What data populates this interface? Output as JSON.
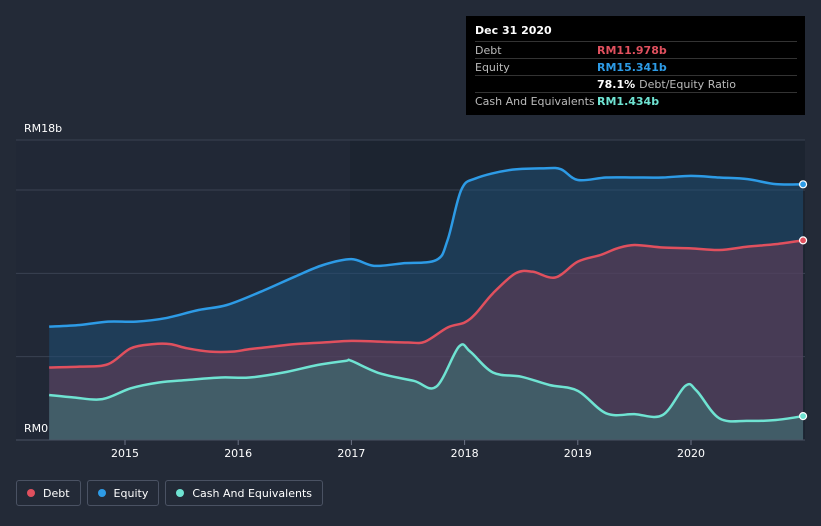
{
  "chart_data": {
    "type": "area",
    "x_ticks": [
      "2015",
      "2016",
      "2017",
      "2018",
      "2019",
      "2020"
    ],
    "y_ticks": [
      "RM0",
      "RM18b"
    ],
    "ylim": [
      0,
      18
    ],
    "y_unit": "RM billion",
    "grid": true,
    "legend_position": "bottom-left",
    "series": [
      {
        "name": "Debt",
        "color": "#e0505e",
        "points": [
          [
            2014.33,
            4.35
          ],
          [
            2014.6,
            4.4
          ],
          [
            2014.85,
            4.55
          ],
          [
            2015.05,
            5.5
          ],
          [
            2015.25,
            5.75
          ],
          [
            2015.4,
            5.75
          ],
          [
            2015.55,
            5.5
          ],
          [
            2015.75,
            5.3
          ],
          [
            2015.95,
            5.3
          ],
          [
            2016.1,
            5.45
          ],
          [
            2016.3,
            5.6
          ],
          [
            2016.5,
            5.75
          ],
          [
            2016.75,
            5.85
          ],
          [
            2017.0,
            5.95
          ],
          [
            2017.25,
            5.9
          ],
          [
            2017.5,
            5.85
          ],
          [
            2017.65,
            5.9
          ],
          [
            2017.85,
            6.75
          ],
          [
            2018.0,
            7.05
          ],
          [
            2018.1,
            7.6
          ],
          [
            2018.25,
            8.8
          ],
          [
            2018.45,
            10.0
          ],
          [
            2018.6,
            10.1
          ],
          [
            2018.8,
            9.75
          ],
          [
            2019.0,
            10.7
          ],
          [
            2019.2,
            11.1
          ],
          [
            2019.35,
            11.5
          ],
          [
            2019.5,
            11.7
          ],
          [
            2019.75,
            11.55
          ],
          [
            2020.0,
            11.5
          ],
          [
            2020.25,
            11.4
          ],
          [
            2020.5,
            11.6
          ],
          [
            2020.75,
            11.75
          ],
          [
            2020.99,
            11.978
          ]
        ]
      },
      {
        "name": "Equity",
        "color": "#2d9be6",
        "points": [
          [
            2014.33,
            6.8
          ],
          [
            2014.6,
            6.9
          ],
          [
            2014.85,
            7.1
          ],
          [
            2015.1,
            7.1
          ],
          [
            2015.35,
            7.3
          ],
          [
            2015.65,
            7.8
          ],
          [
            2015.9,
            8.1
          ],
          [
            2016.2,
            8.9
          ],
          [
            2016.5,
            9.8
          ],
          [
            2016.75,
            10.5
          ],
          [
            2017.0,
            10.85
          ],
          [
            2017.2,
            10.45
          ],
          [
            2017.45,
            10.6
          ],
          [
            2017.75,
            10.8
          ],
          [
            2017.85,
            12.0
          ],
          [
            2017.97,
            15.0
          ],
          [
            2018.1,
            15.7
          ],
          [
            2018.4,
            16.2
          ],
          [
            2018.7,
            16.3
          ],
          [
            2018.85,
            16.25
          ],
          [
            2019.0,
            15.6
          ],
          [
            2019.25,
            15.75
          ],
          [
            2019.5,
            15.75
          ],
          [
            2019.75,
            15.75
          ],
          [
            2020.0,
            15.85
          ],
          [
            2020.25,
            15.75
          ],
          [
            2020.5,
            15.65
          ],
          [
            2020.75,
            15.35
          ],
          [
            2020.99,
            15.341
          ]
        ]
      },
      {
        "name": "Cash And Equivalents",
        "color": "#6fe3d2",
        "points": [
          [
            2014.33,
            2.7
          ],
          [
            2014.55,
            2.55
          ],
          [
            2014.8,
            2.45
          ],
          [
            2015.05,
            3.1
          ],
          [
            2015.3,
            3.45
          ],
          [
            2015.55,
            3.6
          ],
          [
            2015.85,
            3.75
          ],
          [
            2016.1,
            3.75
          ],
          [
            2016.4,
            4.05
          ],
          [
            2016.7,
            4.5
          ],
          [
            2016.95,
            4.75
          ],
          [
            2017.0,
            4.75
          ],
          [
            2017.25,
            4.0
          ],
          [
            2017.55,
            3.55
          ],
          [
            2017.75,
            3.2
          ],
          [
            2017.95,
            5.6
          ],
          [
            2018.05,
            5.3
          ],
          [
            2018.25,
            4.05
          ],
          [
            2018.5,
            3.8
          ],
          [
            2018.75,
            3.3
          ],
          [
            2019.0,
            2.95
          ],
          [
            2019.25,
            1.6
          ],
          [
            2019.5,
            1.55
          ],
          [
            2019.75,
            1.5
          ],
          [
            2019.95,
            3.25
          ],
          [
            2020.05,
            2.95
          ],
          [
            2020.25,
            1.3
          ],
          [
            2020.5,
            1.15
          ],
          [
            2020.75,
            1.2
          ],
          [
            2020.99,
            1.434
          ]
        ]
      }
    ]
  },
  "tooltip": {
    "date": "Dec 31 2020",
    "rows": [
      {
        "label": "Debt",
        "value": "RM11.978b",
        "color": "#e0505e"
      },
      {
        "label": "Equity",
        "value": "RM15.341b",
        "color": "#2d9be6"
      },
      {
        "label": "",
        "value": "78.1%",
        "extra": "Debt/Equity Ratio",
        "color": "#ffffff"
      },
      {
        "label": "Cash And Equivalents",
        "value": "RM1.434b",
        "color": "#6fe3d2"
      }
    ]
  },
  "legend": [
    {
      "label": "Debt",
      "color": "#e0505e"
    },
    {
      "label": "Equity",
      "color": "#2d9be6"
    },
    {
      "label": "Cash And Equivalents",
      "color": "#6fe3d2"
    }
  ]
}
